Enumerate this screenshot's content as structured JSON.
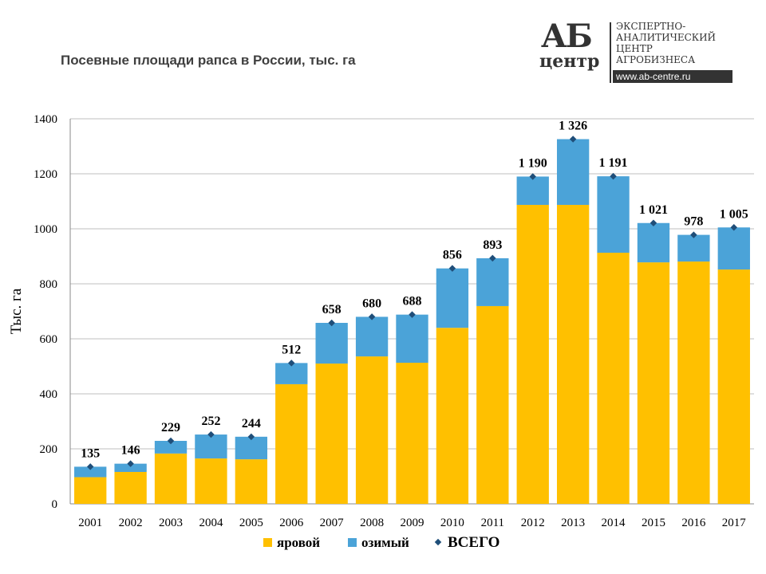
{
  "title": "Посевные площади рапса в России, тыс. га",
  "logo": {
    "ab": "АБ",
    "centre": "центр",
    "lines": [
      "ЭКСПЕРТНО-",
      "АНАЛИТИЧЕСКИЙ",
      "ЦЕНТР",
      "АГРОБИЗНЕСА"
    ],
    "url": "www.ab-centre.ru"
  },
  "chart_data": {
    "type": "bar",
    "stacked": true,
    "title": "Посевные площади рапса в России, тыс. га",
    "ylabel": "Тыс. га",
    "xlabel": "",
    "ylim": [
      0,
      1400
    ],
    "yticks": [
      0,
      200,
      400,
      600,
      800,
      1000,
      1200,
      1400
    ],
    "grid": true,
    "legend_position": "bottom",
    "categories": [
      "2001",
      "2002",
      "2003",
      "2004",
      "2005",
      "2006",
      "2007",
      "2008",
      "2009",
      "2010",
      "2011",
      "2012",
      "2013",
      "2014",
      "2015",
      "2016",
      "2017"
    ],
    "series": [
      {
        "name": "яровой",
        "color": "#FFC000",
        "values": [
          97,
          116,
          183,
          165,
          162,
          435,
          510,
          536,
          513,
          640,
          719,
          1087,
          1087,
          913,
          878,
          881,
          852
        ]
      },
      {
        "name": "озимый",
        "color": "#4BA3D8",
        "values": [
          38,
          30,
          46,
          87,
          82,
          77,
          148,
          144,
          175,
          216,
          174,
          103,
          239,
          278,
          143,
          97,
          153
        ]
      },
      {
        "name": "ВСЕГО",
        "color": "#1F4E79",
        "type": "marker",
        "values": [
          135,
          146,
          229,
          252,
          244,
          512,
          658,
          680,
          688,
          856,
          893,
          1190,
          1326,
          1191,
          1021,
          978,
          1005
        ],
        "labels": [
          "135",
          "146",
          "229",
          "252",
          "244",
          "512",
          "658",
          "680",
          "688",
          "856",
          "893",
          "1 190",
          "1 326",
          "1 191",
          "1 021",
          "978",
          "1 005"
        ]
      }
    ]
  }
}
